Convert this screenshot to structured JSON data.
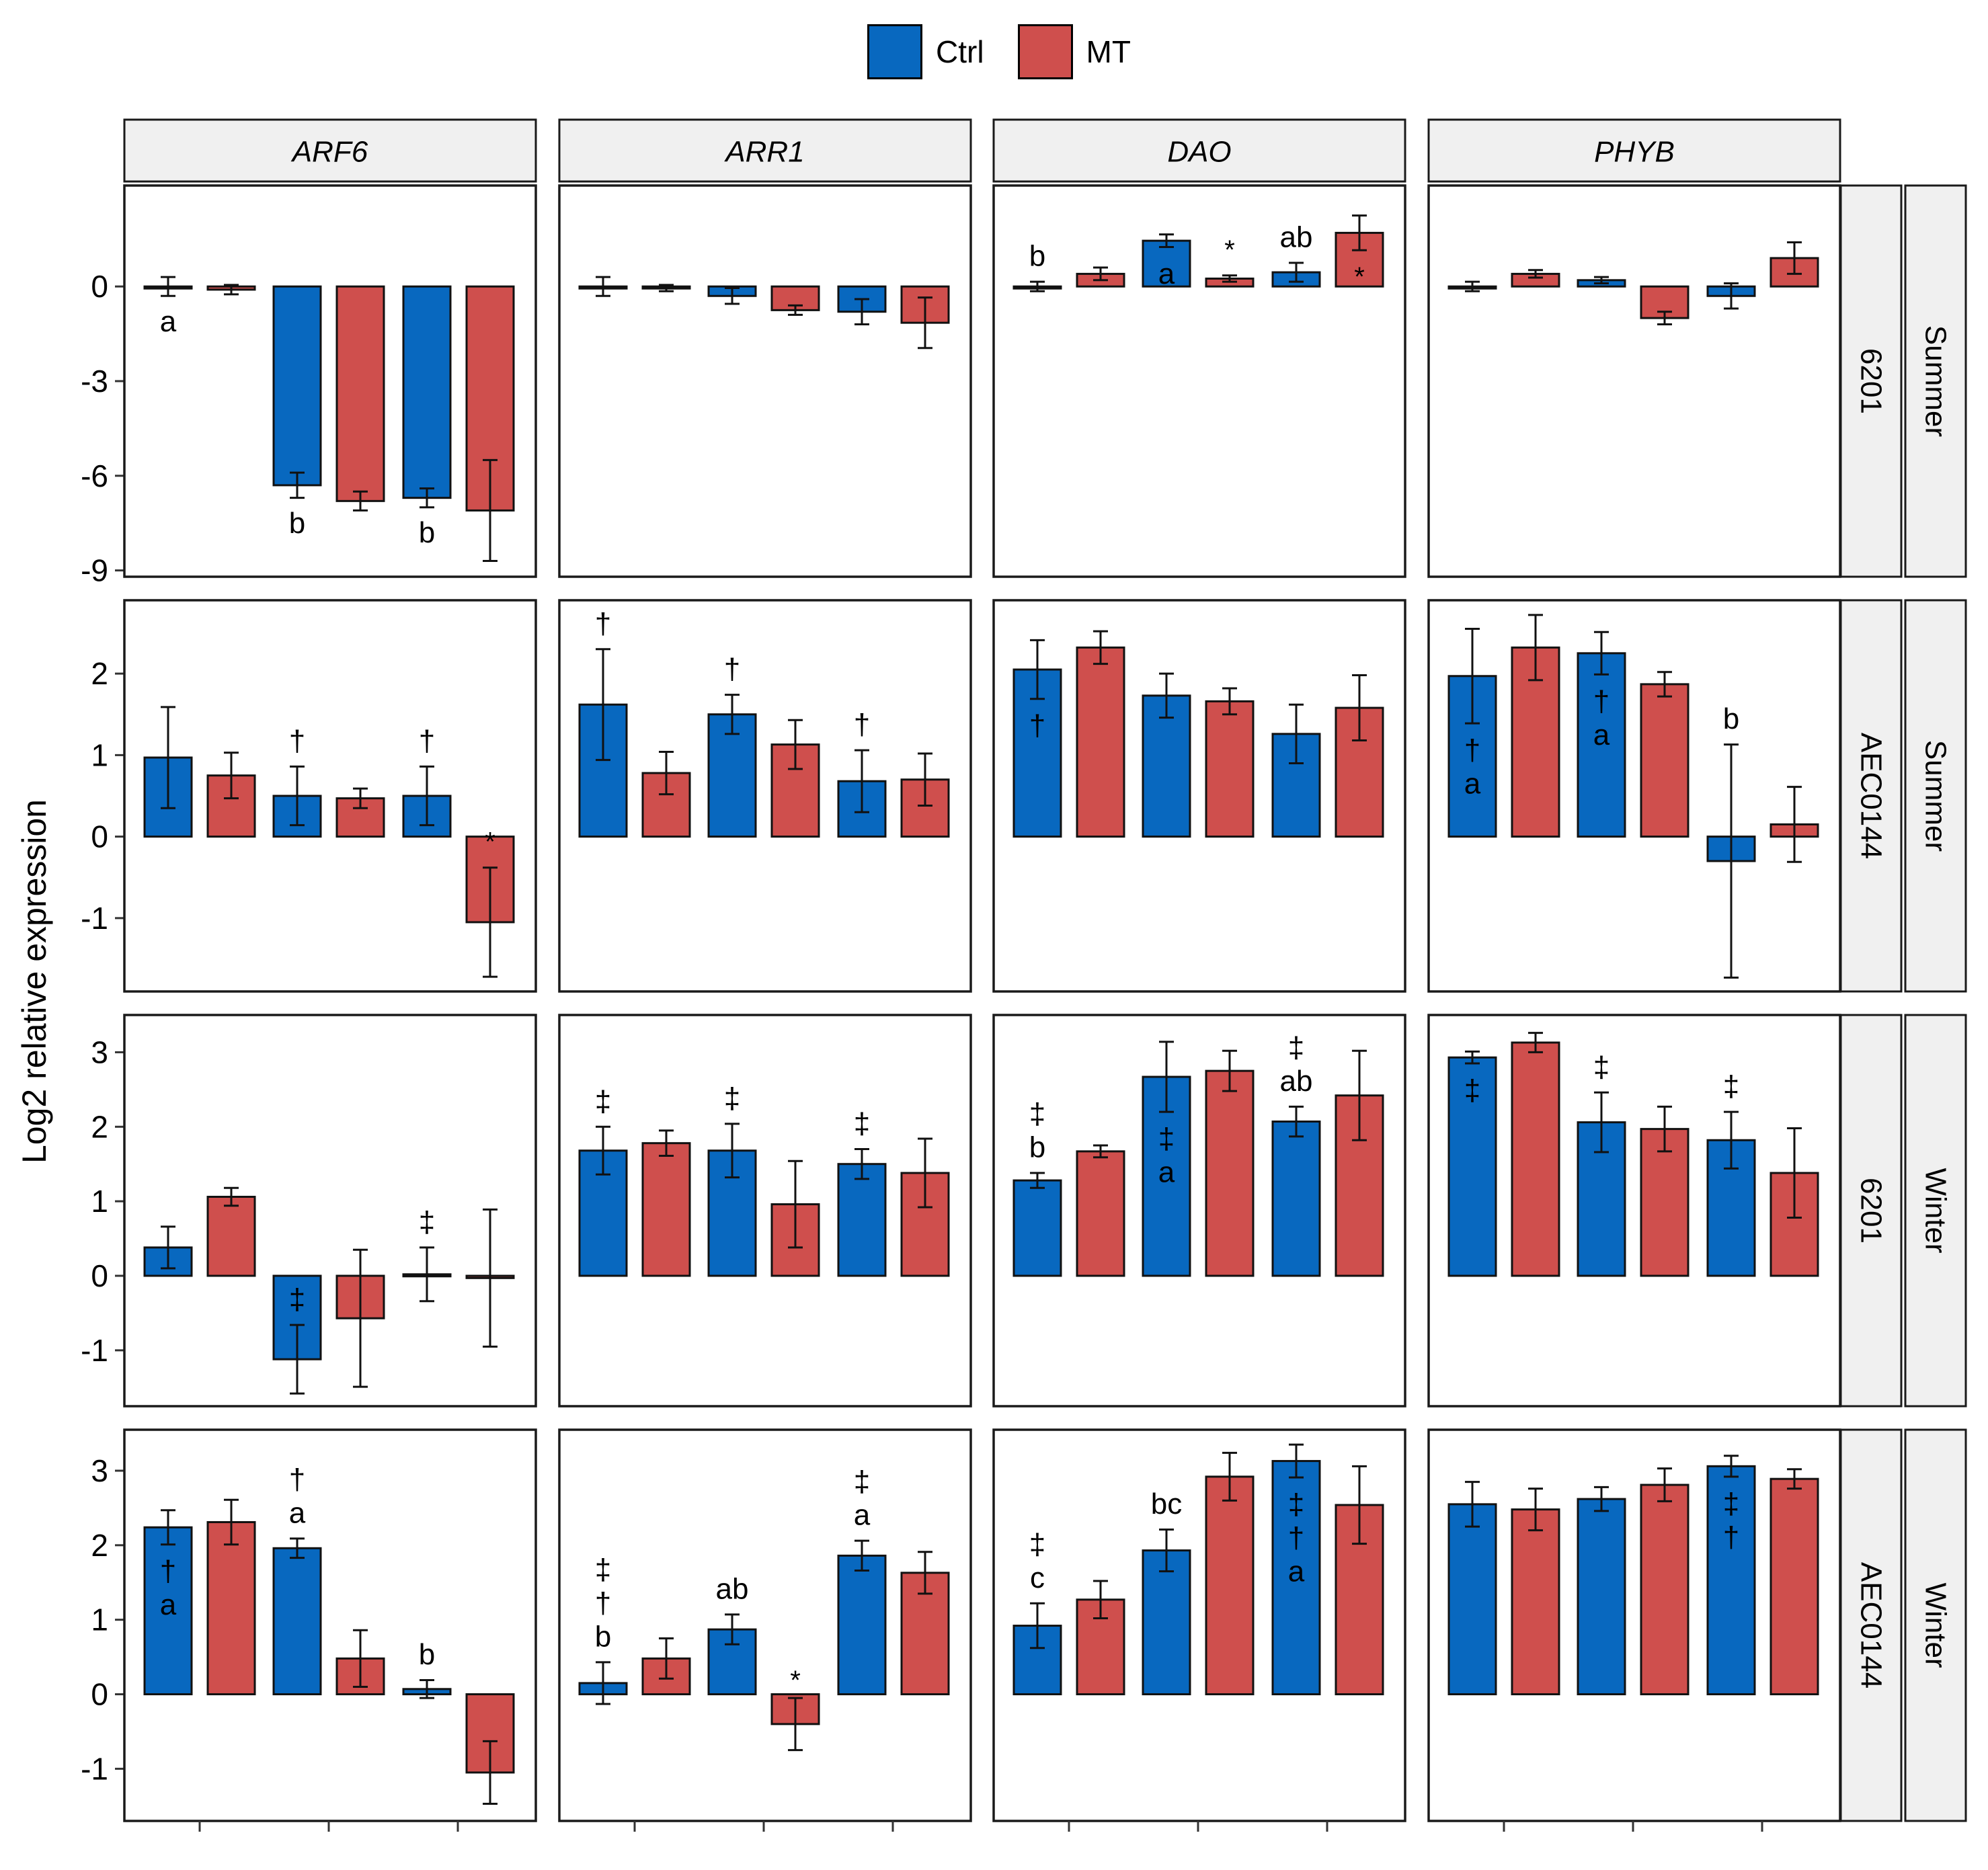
{
  "legend": {
    "ctrl_label": "Ctrl",
    "mt_label": "MT",
    "ctrl_color": "#0868BF",
    "mt_color": "#CF4F4D"
  },
  "chart_data": {
    "type": "bar",
    "ylabel": "Log2 relative expression",
    "xlabel": "",
    "genes": [
      "ARF6",
      "ARR1",
      "DAO",
      "PHYB"
    ],
    "rows": [
      {
        "cultivar": "6201",
        "season": "Summer",
        "ylim": [
          -9.2,
          3.2
        ],
        "ticks": [
          0,
          -3,
          -6,
          -9
        ],
        "panels": [
          {
            "bars": [
              {
                "v": 0,
                "e": 0.3
              },
              {
                "v": -0.1,
                "e": 0.15
              },
              {
                "v": -6.3,
                "e": 0.4
              },
              {
                "v": -6.8,
                "e": 0.3
              },
              {
                "v": -6.7,
                "e": 0.3
              },
              {
                "v": -7.1,
                "e": 1.6
              }
            ],
            "annotations": [
              {
                "slot": 0,
                "text": "a",
                "pos": "below"
              },
              {
                "slot": 2,
                "text": "b",
                "pos": "below"
              },
              {
                "slot": 4,
                "text": "b",
                "pos": "below"
              }
            ]
          },
          {
            "bars": [
              {
                "v": 0,
                "e": 0.3
              },
              {
                "v": -0.05,
                "e": 0.1
              },
              {
                "v": -0.3,
                "e": 0.25
              },
              {
                "v": -0.75,
                "e": 0.15
              },
              {
                "v": -0.8,
                "e": 0.4
              },
              {
                "v": -1.15,
                "e": 0.8
              }
            ],
            "annotations": []
          },
          {
            "bars": [
              {
                "v": 0,
                "e": 0.15
              },
              {
                "v": 0.4,
                "e": 0.2
              },
              {
                "v": 1.45,
                "e": 0.2
              },
              {
                "v": 0.25,
                "e": 0.1
              },
              {
                "v": 0.45,
                "e": 0.3
              },
              {
                "v": 1.7,
                "e": 0.55
              }
            ],
            "annotations": [
              {
                "slot": 0,
                "text": "b",
                "pos": "above"
              },
              {
                "slot": 2,
                "text": "a",
                "pos": "inside"
              },
              {
                "slot": 3,
                "text": "*",
                "pos": "above"
              },
              {
                "slot": 4,
                "text": "ab",
                "pos": "above"
              },
              {
                "slot": 5,
                "text": "*",
                "pos": "inside"
              }
            ]
          },
          {
            "bars": [
              {
                "v": 0,
                "e": 0.15
              },
              {
                "v": 0.4,
                "e": 0.12
              },
              {
                "v": 0.2,
                "e": 0.1
              },
              {
                "v": -1.0,
                "e": 0.2
              },
              {
                "v": -0.3,
                "e": 0.4
              },
              {
                "v": 0.9,
                "e": 0.5
              }
            ],
            "annotations": []
          }
        ]
      },
      {
        "cultivar": "AEC0144",
        "season": "Summer",
        "ylim": [
          -1.9,
          2.9
        ],
        "ticks": [
          2,
          1,
          0,
          -1
        ],
        "panels": [
          {
            "bars": [
              {
                "v": 0.97,
                "e": 0.62
              },
              {
                "v": 0.75,
                "e": 0.28
              },
              {
                "v": 0.5,
                "e": 0.36
              },
              {
                "v": 0.47,
                "e": 0.12
              },
              {
                "v": 0.5,
                "e": 0.36
              },
              {
                "v": -1.05,
                "e": 0.67
              }
            ],
            "annotations": [
              {
                "slot": 2,
                "text": "†",
                "pos": "above"
              },
              {
                "slot": 4,
                "text": "†",
                "pos": "above"
              },
              {
                "slot": 5,
                "text": "*",
                "pos": "above"
              }
            ]
          },
          {
            "bars": [
              {
                "v": 1.62,
                "e": 0.68
              },
              {
                "v": 0.78,
                "e": 0.26
              },
              {
                "v": 1.5,
                "e": 0.24
              },
              {
                "v": 1.13,
                "e": 0.3
              },
              {
                "v": 0.68,
                "e": 0.38
              },
              {
                "v": 0.7,
                "e": 0.32
              }
            ],
            "annotations": [
              {
                "slot": 0,
                "text": "†",
                "pos": "above"
              },
              {
                "slot": 2,
                "text": "†",
                "pos": "above"
              },
              {
                "slot": 4,
                "text": "†",
                "pos": "above"
              }
            ]
          },
          {
            "bars": [
              {
                "v": 2.05,
                "e": 0.36
              },
              {
                "v": 2.32,
                "e": 0.2
              },
              {
                "v": 1.73,
                "e": 0.27
              },
              {
                "v": 1.66,
                "e": 0.16
              },
              {
                "v": 1.26,
                "e": 0.36
              },
              {
                "v": 1.58,
                "e": 0.4
              }
            ],
            "annotations": [
              {
                "slot": 0,
                "text": "†",
                "pos": "inside"
              }
            ]
          },
          {
            "bars": [
              {
                "v": 1.97,
                "e": 0.58
              },
              {
                "v": 2.32,
                "e": 0.4
              },
              {
                "v": 2.25,
                "e": 0.26
              },
              {
                "v": 1.87,
                "e": 0.15
              },
              {
                "v": -0.3,
                "e": 1.43
              },
              {
                "v": 0.15,
                "e": 0.46
              }
            ],
            "annotations": [
              {
                "slot": 0,
                "text": "†",
                "pos": "inside"
              },
              {
                "slot": 0,
                "text": "a",
                "pos": "inside2"
              },
              {
                "slot": 2,
                "text": "†",
                "pos": "inside"
              },
              {
                "slot": 2,
                "text": "a",
                "pos": "inside2"
              },
              {
                "slot": 4,
                "text": "b",
                "pos": "above"
              }
            ]
          }
        ]
      },
      {
        "cultivar": "6201",
        "season": "Winter",
        "ylim": [
          -1.75,
          3.5
        ],
        "ticks": [
          3,
          2,
          1,
          0,
          -1
        ],
        "panels": [
          {
            "bars": [
              {
                "v": 0.38,
                "e": 0.28
              },
              {
                "v": 1.06,
                "e": 0.12
              },
              {
                "v": -1.12,
                "e": 0.46
              },
              {
                "v": -0.57,
                "e": 0.92
              },
              {
                "v": 0.02,
                "e": 0.36
              },
              {
                "v": -0.03,
                "e": 0.92
              }
            ],
            "annotations": [
              {
                "slot": 2,
                "text": "‡",
                "pos": "above"
              },
              {
                "slot": 4,
                "text": "‡",
                "pos": "above"
              }
            ]
          },
          {
            "bars": [
              {
                "v": 1.68,
                "e": 0.32
              },
              {
                "v": 1.78,
                "e": 0.17
              },
              {
                "v": 1.68,
                "e": 0.36
              },
              {
                "v": 0.96,
                "e": 0.58
              },
              {
                "v": 1.5,
                "e": 0.2
              },
              {
                "v": 1.38,
                "e": 0.46
              }
            ],
            "annotations": [
              {
                "slot": 0,
                "text": "‡",
                "pos": "above"
              },
              {
                "slot": 2,
                "text": "‡",
                "pos": "above"
              },
              {
                "slot": 4,
                "text": "‡",
                "pos": "above"
              }
            ]
          },
          {
            "bars": [
              {
                "v": 1.28,
                "e": 0.1
              },
              {
                "v": 1.67,
                "e": 0.08
              },
              {
                "v": 2.67,
                "e": 0.47
              },
              {
                "v": 2.75,
                "e": 0.27
              },
              {
                "v": 2.07,
                "e": 0.2
              },
              {
                "v": 2.42,
                "e": 0.6
              }
            ],
            "annotations": [
              {
                "slot": 0,
                "text": "‡",
                "pos": "above2"
              },
              {
                "slot": 0,
                "text": "b",
                "pos": "above"
              },
              {
                "slot": 2,
                "text": "‡",
                "pos": "inside"
              },
              {
                "slot": 2,
                "text": "a",
                "pos": "inside2"
              },
              {
                "slot": 4,
                "text": "‡",
                "pos": "above2"
              },
              {
                "slot": 4,
                "text": "ab",
                "pos": "above"
              }
            ]
          },
          {
            "bars": [
              {
                "v": 2.93,
                "e": 0.08
              },
              {
                "v": 3.13,
                "e": 0.13
              },
              {
                "v": 2.06,
                "e": 0.4
              },
              {
                "v": 1.97,
                "e": 0.3
              },
              {
                "v": 1.82,
                "e": 0.38
              },
              {
                "v": 1.38,
                "e": 0.6
              }
            ],
            "annotations": [
              {
                "slot": 0,
                "text": "‡",
                "pos": "inside"
              },
              {
                "slot": 2,
                "text": "‡",
                "pos": "above"
              },
              {
                "slot": 4,
                "text": "‡",
                "pos": "above"
              }
            ]
          }
        ]
      },
      {
        "cultivar": "AEC0144",
        "season": "Winter",
        "ylim": [
          -1.7,
          3.55
        ],
        "ticks": [
          3,
          2,
          1,
          0,
          -1
        ],
        "panels": [
          {
            "bars": [
              {
                "v": 2.24,
                "e": 0.23
              },
              {
                "v": 2.31,
                "e": 0.3
              },
              {
                "v": 1.96,
                "e": 0.13
              },
              {
                "v": 0.48,
                "e": 0.38
              },
              {
                "v": 0.07,
                "e": 0.12
              },
              {
                "v": -1.05,
                "e": 0.42
              }
            ],
            "annotations": [
              {
                "slot": 0,
                "text": "†",
                "pos": "inside"
              },
              {
                "slot": 0,
                "text": "a",
                "pos": "inside2"
              },
              {
                "slot": 2,
                "text": "†",
                "pos": "above2"
              },
              {
                "slot": 2,
                "text": "a",
                "pos": "above"
              },
              {
                "slot": 4,
                "text": "b",
                "pos": "above"
              }
            ]
          },
          {
            "bars": [
              {
                "v": 0.15,
                "e": 0.28
              },
              {
                "v": 0.48,
                "e": 0.27
              },
              {
                "v": 0.87,
                "e": 0.2
              },
              {
                "v": -0.4,
                "e": 0.35
              },
              {
                "v": 1.86,
                "e": 0.2
              },
              {
                "v": 1.63,
                "e": 0.28
              }
            ],
            "annotations": [
              {
                "slot": 0,
                "text": "‡",
                "pos": "above3"
              },
              {
                "slot": 0,
                "text": "†",
                "pos": "above2"
              },
              {
                "slot": 0,
                "text": "b",
                "pos": "above"
              },
              {
                "slot": 2,
                "text": "ab",
                "pos": "above"
              },
              {
                "slot": 3,
                "text": "*",
                "pos": "above0"
              },
              {
                "slot": 4,
                "text": "‡",
                "pos": "above2"
              },
              {
                "slot": 4,
                "text": "a",
                "pos": "above"
              }
            ]
          },
          {
            "bars": [
              {
                "v": 0.92,
                "e": 0.3
              },
              {
                "v": 1.27,
                "e": 0.25
              },
              {
                "v": 1.93,
                "e": 0.28
              },
              {
                "v": 2.92,
                "e": 0.32
              },
              {
                "v": 3.13,
                "e": 0.22
              },
              {
                "v": 2.54,
                "e": 0.52
              }
            ],
            "annotations": [
              {
                "slot": 0,
                "text": "‡",
                "pos": "above2"
              },
              {
                "slot": 0,
                "text": "c",
                "pos": "above"
              },
              {
                "slot": 2,
                "text": "bc",
                "pos": "above"
              },
              {
                "slot": 4,
                "text": "‡",
                "pos": "inside"
              },
              {
                "slot": 4,
                "text": "†",
                "pos": "inside2"
              },
              {
                "slot": 4,
                "text": "a",
                "pos": "inside3"
              }
            ]
          },
          {
            "bars": [
              {
                "v": 2.55,
                "e": 0.3
              },
              {
                "v": 2.48,
                "e": 0.28
              },
              {
                "v": 2.62,
                "e": 0.16
              },
              {
                "v": 2.81,
                "e": 0.22
              },
              {
                "v": 3.06,
                "e": 0.14
              },
              {
                "v": 2.89,
                "e": 0.13
              }
            ],
            "annotations": [
              {
                "slot": 4,
                "text": "‡",
                "pos": "inside"
              },
              {
                "slot": 4,
                "text": "†",
                "pos": "inside2"
              }
            ]
          }
        ]
      }
    ]
  }
}
